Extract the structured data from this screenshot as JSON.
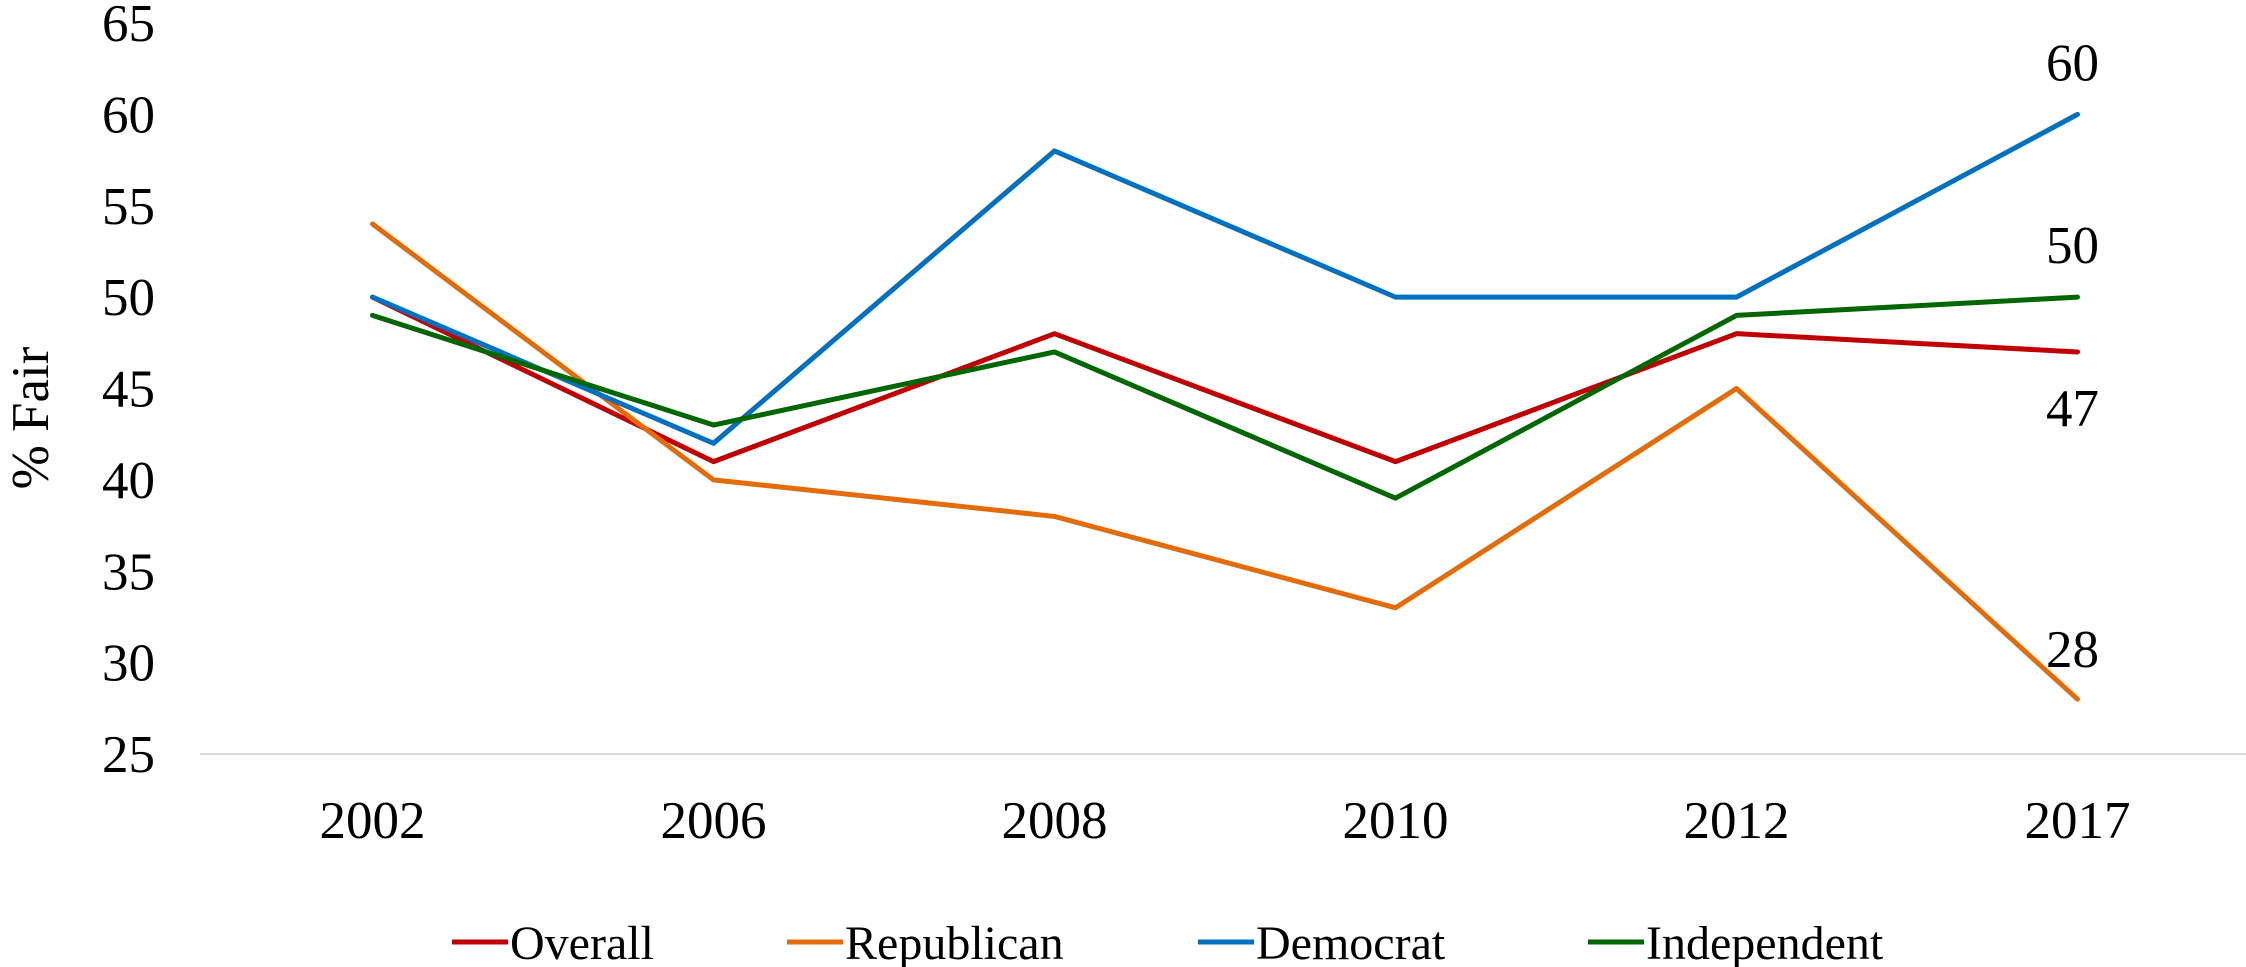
{
  "chart_data": {
    "type": "line",
    "categories": [
      "2002",
      "2006",
      "2008",
      "2010",
      "2012",
      "2017"
    ],
    "ylabel": "% Fair",
    "ylim": [
      25,
      65
    ],
    "yticks": [
      "25",
      "30",
      "35",
      "40",
      "45",
      "50",
      "55",
      "60",
      "65"
    ],
    "grid": false,
    "legend_position": "bottom",
    "series": [
      {
        "name": "Overall",
        "color": "#c00000",
        "values": [
          50,
          41,
          48,
          41,
          48,
          47
        ],
        "end_label": "47"
      },
      {
        "name": "Republican",
        "color": "#e36c09",
        "values": [
          54,
          40,
          38,
          33,
          45,
          28
        ],
        "end_label": "28"
      },
      {
        "name": "Democrat",
        "color": "#0070c0",
        "values": [
          50,
          42,
          58,
          50,
          50,
          60
        ],
        "end_label": "60"
      },
      {
        "name": "Independent",
        "color": "#006600",
        "values": [
          49,
          43,
          47,
          39,
          49,
          50
        ],
        "end_label": "50"
      }
    ]
  }
}
